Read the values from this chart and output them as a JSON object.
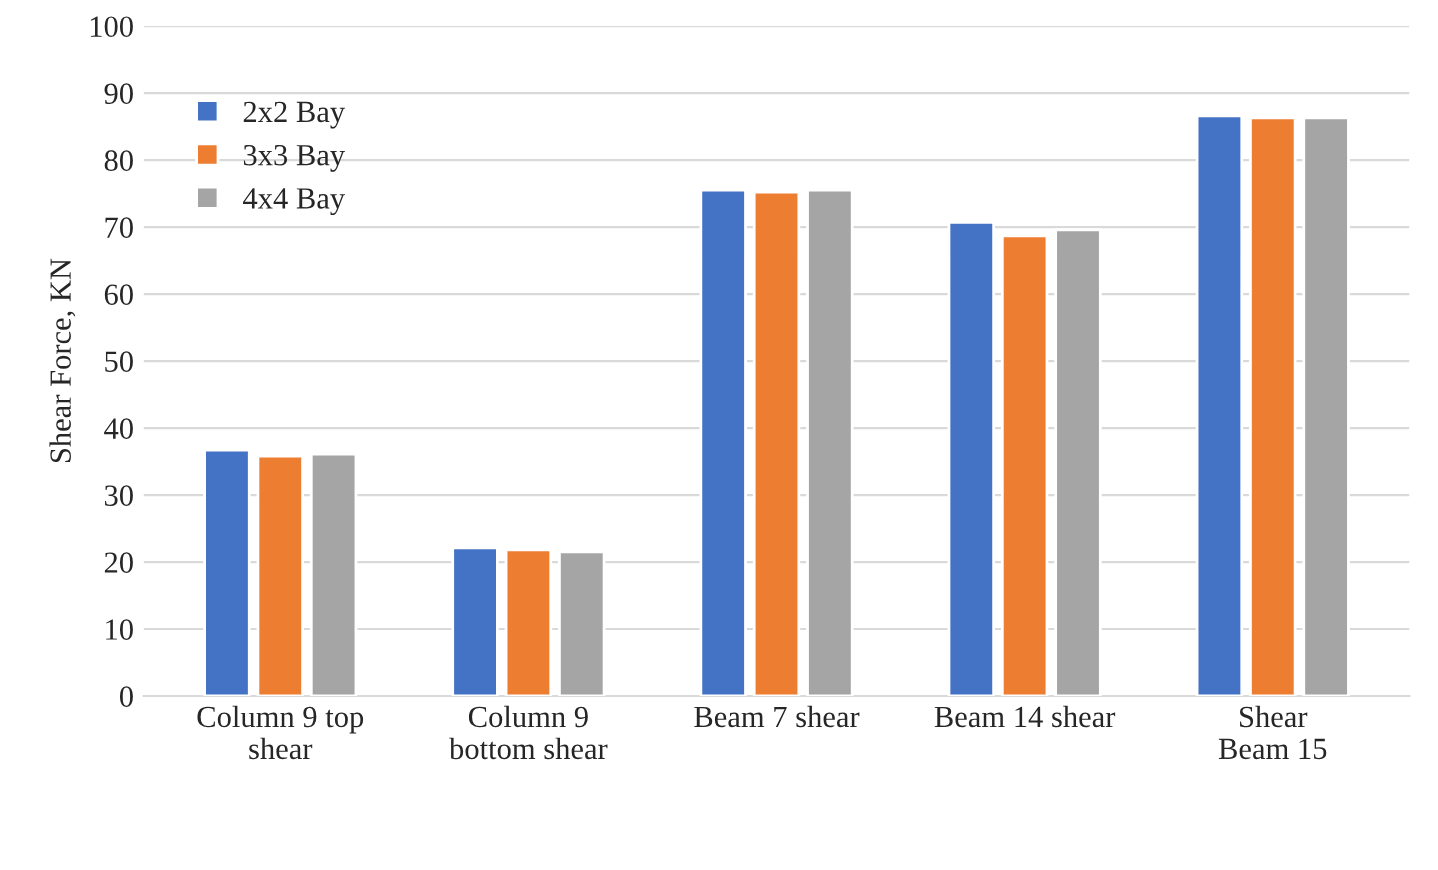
{
  "chart_data": {
    "type": "bar",
    "ylabel": "Shear Force, KN",
    "categories": [
      "Column 9 top\nshear",
      "Column 9\nbottom shear",
      "Beam 7 shear",
      "Beam 14 shear",
      "Shear\nBeam 15"
    ],
    "series": [
      {
        "name": "2x2 Bay",
        "color": "#4472c4",
        "values": [
          36.7,
          22.1,
          75.5,
          70.7,
          86.6
        ]
      },
      {
        "name": "3x3 Bay",
        "color": "#ed7d31",
        "values": [
          35.8,
          21.8,
          75.2,
          68.7,
          86.3
        ]
      },
      {
        "name": "4x4 Bay",
        "color": "#a5a5a5",
        "values": [
          36.1,
          21.5,
          75.5,
          69.6,
          86.3
        ]
      }
    ],
    "ylim": [
      0,
      100
    ],
    "yticks": [
      0,
      10,
      20,
      30,
      40,
      50,
      60,
      70,
      80,
      90,
      100
    ],
    "grid": "y",
    "legend": "top left"
  }
}
